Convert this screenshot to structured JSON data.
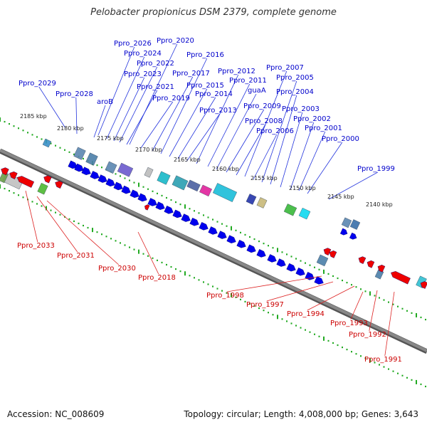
{
  "title": "Pelobacter propionicus DSM 2379, complete genome",
  "footer": {
    "accession": "Accession: NC_008609",
    "stats": "Topology: circular; Length: 4,008,000 bp; Genes: 3,643"
  },
  "colors": {
    "forward_gene": "#0000ee",
    "reverse_gene": "#ee0000",
    "forward_label": "#0000cc",
    "reverse_label": "#cc0000",
    "backbone": "#888888",
    "ruler_tick": "#22aa22"
  },
  "kbp_labels": [
    "2185 kbp",
    "2180 kbp",
    "2175 kbp",
    "2170 kbp",
    "2165 kbp",
    "2160 kbp",
    "2155 kbp",
    "2150 kbp",
    "2145 kbp",
    "2140 kbp"
  ],
  "forward_labels": [
    "Ppro_2029",
    "Ppro_2028",
    "aroB",
    "Ppro_2026",
    "Ppro_2024",
    "Ppro_2023",
    "Ppro_2022",
    "Ppro_2021",
    "Ppro_2020",
    "Ppro_2019",
    "Ppro_2017",
    "Ppro_2016",
    "Ppro_2015",
    "Ppro_2014",
    "Ppro_2013",
    "Ppro_2012",
    "Ppro_2011",
    "guaA",
    "Ppro_2009",
    "Ppro_2008",
    "Ppro_2007",
    "Ppro_2006",
    "Ppro_2005",
    "Ppro_2004",
    "Ppro_2003",
    "Ppro_2002",
    "Ppro_2001",
    "Ppro_2000",
    "Ppro_1999"
  ],
  "reverse_labels": [
    "Ppro_2033",
    "Ppro_2031",
    "Ppro_2030",
    "Ppro_2018",
    "Ppro_1998",
    "Ppro_1997",
    "Ppro_1994",
    "Ppro_1993",
    "Ppro_1992",
    "Ppro_1991"
  ]
}
